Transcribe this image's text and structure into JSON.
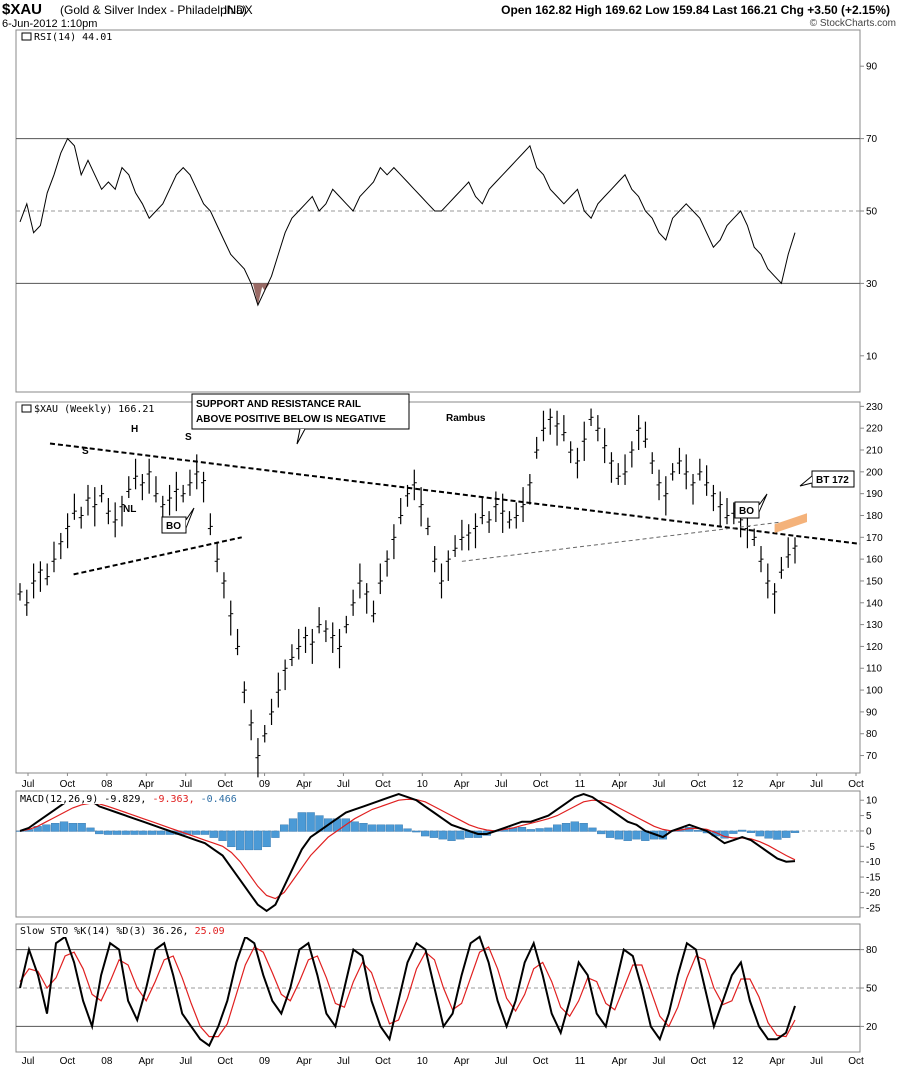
{
  "header": {
    "symbol": "$XAU",
    "name": "(Gold & Silver Index - Philadelphia)",
    "exchange": "INDX",
    "date": "6-Jun-2012 1:10pm",
    "quote": "Open 162.82  High 169.62  Low 159.84  Last 166.21  Chg +3.50 (+2.15%)",
    "credit": "© StockCharts.com"
  },
  "chart_data": [
    {
      "type": "line",
      "title": "RSI(14) 44.01",
      "ylim": [
        0,
        100
      ],
      "yticks": [
        10,
        30,
        50,
        70,
        90
      ],
      "reference_lines": [
        30,
        50,
        70
      ],
      "series": [
        {
          "name": "RSI(14)",
          "values": [
            47,
            52,
            44,
            46,
            55,
            60,
            66,
            70,
            68,
            60,
            64,
            60,
            56,
            58,
            56,
            62,
            60,
            55,
            52,
            48,
            50,
            52,
            56,
            60,
            62,
            60,
            56,
            52,
            50,
            46,
            42,
            38,
            36,
            34,
            30,
            24,
            28,
            32,
            38,
            44,
            48,
            50,
            52,
            54,
            50,
            52,
            56,
            54,
            52,
            50,
            54,
            56,
            58,
            62,
            60,
            62,
            60,
            58,
            56,
            54,
            52,
            50,
            50,
            52,
            54,
            56,
            58,
            54,
            52,
            56,
            58,
            60,
            62,
            64,
            66,
            68,
            62,
            60,
            56,
            54,
            52,
            54,
            56,
            50,
            48,
            52,
            54,
            56,
            58,
            60,
            56,
            54,
            50,
            48,
            44,
            42,
            48,
            50,
            52,
            50,
            48,
            44,
            40,
            42,
            46,
            48,
            50,
            46,
            40,
            38,
            34,
            32,
            30,
            38,
            44
          ]
        }
      ],
      "value_label": "44.01"
    },
    {
      "type": "line",
      "title": "$XAU (Weekly) 166.21",
      "ylim": [
        62,
        232
      ],
      "yticks": [
        70,
        80,
        90,
        100,
        110,
        120,
        130,
        140,
        150,
        160,
        170,
        180,
        190,
        200,
        210,
        220,
        230
      ],
      "x_labels": [
        "Jul",
        "Oct",
        "08",
        "Apr",
        "Jul",
        "Oct",
        "09",
        "Apr",
        "Jul",
        "Oct",
        "10",
        "Apr",
        "Jul",
        "Oct",
        "11",
        "Apr",
        "Jul",
        "Oct",
        "12",
        "Apr",
        "Jul",
        "Oct"
      ],
      "series": [
        {
          "name": "$XAU",
          "values": [
            145,
            140,
            150,
            155,
            152,
            160,
            168,
            175,
            182,
            180,
            188,
            185,
            190,
            182,
            178,
            185,
            192,
            198,
            195,
            200,
            190,
            185,
            188,
            192,
            190,
            195,
            200,
            196,
            175,
            160,
            150,
            135,
            120,
            100,
            85,
            70,
            80,
            90,
            100,
            110,
            115,
            120,
            125,
            122,
            130,
            128,
            125,
            120,
            130,
            140,
            150,
            145,
            135,
            150,
            160,
            170,
            180,
            190,
            195,
            185,
            175,
            160,
            150,
            160,
            165,
            170,
            172,
            175,
            180,
            178,
            185,
            182,
            178,
            180,
            185,
            195,
            210,
            220,
            225,
            222,
            218,
            210,
            205,
            215,
            225,
            220,
            212,
            205,
            198,
            200,
            210,
            220,
            215,
            205,
            195,
            190,
            200,
            205,
            200,
            195,
            200,
            195,
            190,
            185,
            180,
            182,
            178,
            175,
            170,
            160,
            150,
            145,
            155,
            162,
            166
          ]
        }
      ],
      "annotations": {
        "box_text": [
          "SUPPORT AND RESISTANCE RAIL",
          "ABOVE POSITIVE BELOW IS NEGATIVE"
        ],
        "author": "Rambus",
        "shoulder_left": "S",
        "head": "H",
        "shoulder_right": "S",
        "neckline": "NL",
        "breakout_1": "BO",
        "breakout_2": "BO",
        "backtest": "BT 172"
      }
    },
    {
      "type": "line",
      "title": "MACD(12,26,9) -9.829, -9.363, -0.466",
      "title_parts": [
        "MACD(12,26,9)",
        "-9.829,",
        "-9.363,",
        "-0.466"
      ],
      "ylim": [
        -28,
        13
      ],
      "yticks": [
        10,
        5,
        0,
        -5,
        -10,
        -15,
        -20,
        -25
      ],
      "series": [
        {
          "name": "MACD",
          "values": [
            0,
            1,
            3,
            5,
            7,
            9,
            10,
            11,
            10,
            8,
            7,
            6,
            5,
            4,
            3,
            2,
            1,
            0,
            -1,
            -2,
            -3,
            -4,
            -6,
            -8,
            -12,
            -16,
            -20,
            -24,
            -26,
            -24,
            -18,
            -12,
            -6,
            -2,
            0,
            2,
            4,
            6,
            7,
            8,
            9,
            10,
            11,
            12,
            11,
            10,
            8,
            6,
            4,
            2,
            1,
            0,
            -1,
            -1,
            0,
            1,
            2,
            3,
            3,
            4,
            5,
            7,
            9,
            11,
            12,
            11,
            9,
            7,
            5,
            3,
            2,
            0,
            -1,
            -2,
            0,
            1,
            2,
            1,
            0,
            -2,
            -4,
            -3,
            -2,
            -3,
            -5,
            -7,
            -9,
            -10,
            -9.8
          ]
        },
        {
          "name": "Signal",
          "values": [
            0,
            0.5,
            1.5,
            3,
            4.5,
            6,
            7.5,
            8.5,
            9,
            8.8,
            8,
            7,
            6,
            5,
            4,
            3,
            2,
            1,
            0,
            -1,
            -2,
            -3,
            -4,
            -5,
            -7,
            -10,
            -14,
            -18,
            -21,
            -22,
            -20,
            -16,
            -12,
            -8,
            -5,
            -2,
            0,
            2,
            4,
            5.5,
            7,
            8,
            9,
            10,
            10.3,
            10.2,
            9.5,
            8,
            6.5,
            5,
            3.5,
            2,
            1,
            0.3,
            0,
            0.5,
            1,
            1.8,
            2.5,
            3.2,
            4,
            5,
            6.5,
            8,
            9.5,
            10,
            9.8,
            9,
            7.5,
            6,
            4.5,
            3,
            1.5,
            0.5,
            0,
            0.3,
            0.8,
            0.8,
            0.5,
            -0.5,
            -1.8,
            -2.3,
            -2.3,
            -2.6,
            -3.5,
            -4.8,
            -6.4,
            -8,
            -9.4
          ]
        }
      ]
    },
    {
      "type": "line",
      "title": "Slow STO %K(14) %D(3) 36.26, 25.09",
      "title_parts": [
        "Slow STO %K(14) %D(3) 36.26,",
        "25.09"
      ],
      "ylim": [
        0,
        100
      ],
      "yticks": [
        20,
        50,
        80
      ],
      "reference_lines": [
        20,
        50,
        80
      ],
      "series": [
        {
          "name": "%K",
          "values": [
            50,
            80,
            60,
            30,
            85,
            90,
            70,
            40,
            20,
            60,
            85,
            80,
            40,
            25,
            50,
            80,
            85,
            60,
            30,
            20,
            10,
            5,
            20,
            40,
            70,
            90,
            85,
            60,
            40,
            30,
            50,
            80,
            85,
            60,
            30,
            20,
            50,
            80,
            75,
            40,
            20,
            10,
            40,
            70,
            85,
            80,
            50,
            20,
            30,
            60,
            85,
            90,
            70,
            40,
            20,
            40,
            70,
            85,
            60,
            30,
            15,
            40,
            70,
            60,
            30,
            20,
            50,
            80,
            75,
            50,
            20,
            10,
            30,
            60,
            85,
            80,
            50,
            20,
            40,
            60,
            70,
            40,
            20,
            10,
            10,
            15,
            36
          ]
        },
        {
          "name": "%D",
          "values": [
            55,
            65,
            63,
            50,
            58,
            75,
            78,
            65,
            45,
            40,
            55,
            72,
            68,
            50,
            40,
            55,
            72,
            75,
            58,
            38,
            20,
            12,
            12,
            22,
            45,
            68,
            82,
            78,
            62,
            45,
            40,
            55,
            72,
            75,
            58,
            38,
            35,
            55,
            70,
            62,
            42,
            22,
            25,
            42,
            65,
            78,
            72,
            50,
            33,
            38,
            58,
            78,
            82,
            65,
            42,
            32,
            45,
            65,
            70,
            55,
            35,
            28,
            40,
            58,
            55,
            38,
            33,
            50,
            68,
            68,
            48,
            28,
            20,
            35,
            58,
            75,
            72,
            50,
            37,
            40,
            57,
            57,
            43,
            23,
            13,
            12,
            25
          ]
        }
      ]
    }
  ]
}
